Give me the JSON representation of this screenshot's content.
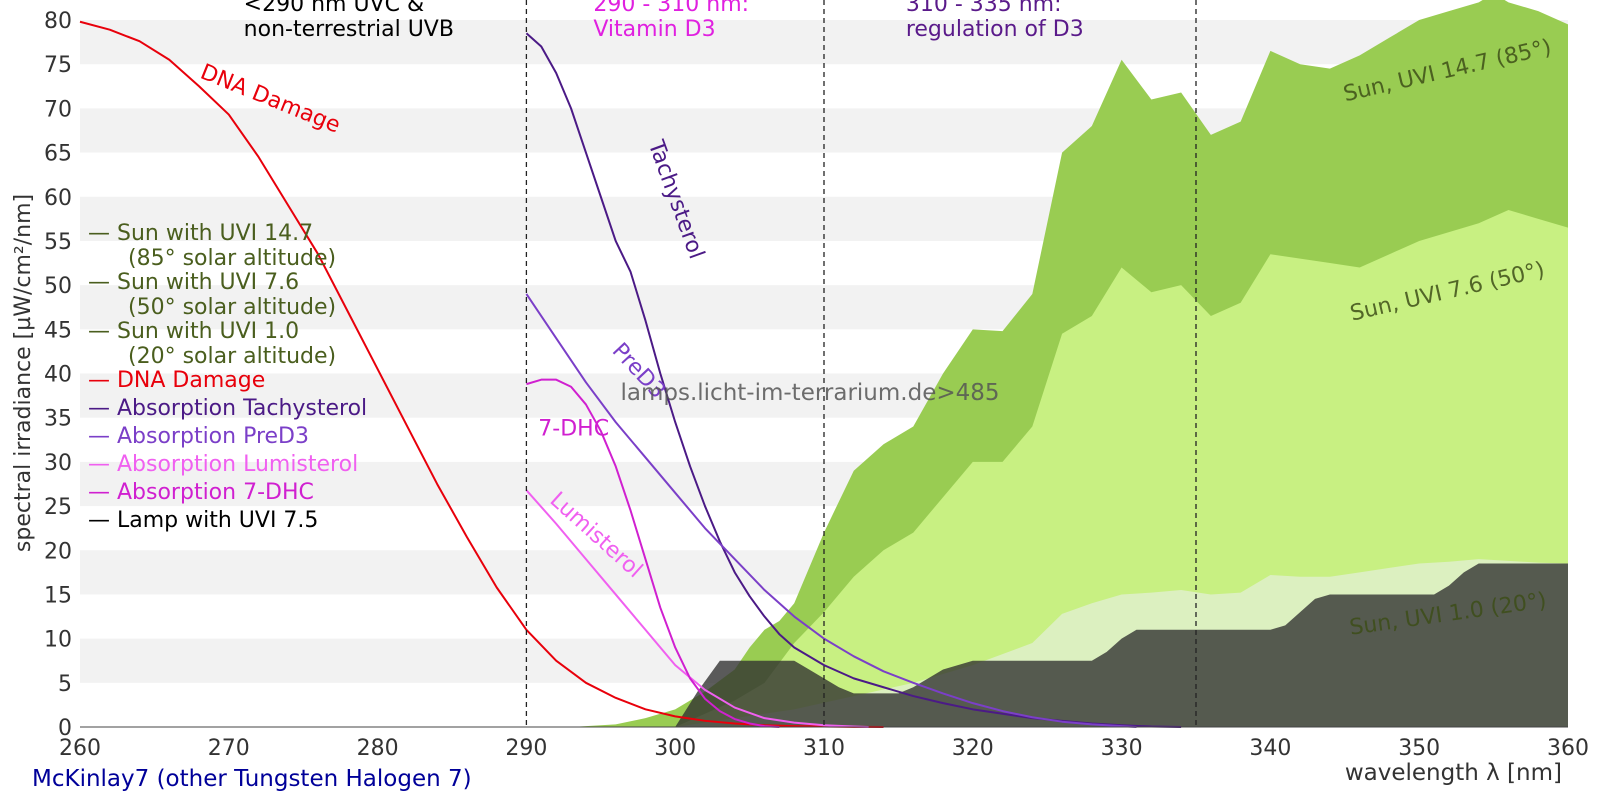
{
  "chart_data": {
    "type": "area",
    "xlabel": "wavelength λ [nm]",
    "ylabel": "spectral irradiance [µW/cm²/nm]",
    "xlim": [
      260,
      360
    ],
    "ylim": [
      0,
      80
    ],
    "x_ticks": [
      260,
      270,
      280,
      290,
      300,
      310,
      320,
      330,
      340,
      350,
      360
    ],
    "y_ticks": [
      0,
      5,
      10,
      15,
      20,
      25,
      30,
      35,
      40,
      45,
      50,
      55,
      60,
      65,
      70,
      75,
      80
    ],
    "grid": "horizontal bands",
    "vlines": [
      290,
      310,
      335
    ],
    "region_labels": [
      {
        "lines": [
          "<290 nm UVC &",
          "non-terrestrial UVB"
        ],
        "x": 271,
        "y": 81,
        "color": "#000000"
      },
      {
        "lines": [
          "290 - 310 nm:",
          "Vitamin D3"
        ],
        "x": 294.5,
        "y": 81,
        "color": "#e020e0"
      },
      {
        "lines": [
          "310 - 335 nm:",
          "regulation of D3"
        ],
        "x": 315.5,
        "y": 81,
        "color": "#5a1a8a"
      }
    ],
    "watermark": "lamps.licht-im-terrarium.de>485",
    "footer": "McKinlay7 (other Tungsten Halogen 7)",
    "legend": {
      "position": "left",
      "entries": [
        {
          "lines": [
            "— Sun with UVI 14.7",
            "(85° solar altitude)"
          ],
          "color": "#4a5e1e"
        },
        {
          "lines": [
            "— Sun with UVI 7.6",
            "(50° solar altitude)"
          ],
          "color": "#4a5e1e"
        },
        {
          "lines": [
            "— Sun with UVI 1.0",
            "(20° solar altitude)"
          ],
          "color": "#4a5e1e"
        },
        {
          "lines": [
            "— DNA Damage"
          ],
          "color": "#e8000b"
        },
        {
          "lines": [
            "— Absorption Tachysterol"
          ],
          "color": "#4b1a86"
        },
        {
          "lines": [
            "— Absorption PreD3"
          ],
          "color": "#7b3fc8"
        },
        {
          "lines": [
            "— Absorption Lumisterol"
          ],
          "color": "#f060f0"
        },
        {
          "lines": [
            "— Absorption 7-DHC"
          ],
          "color": "#d020d0"
        },
        {
          "lines": [
            "— Lamp with UVI 7.5"
          ],
          "color": "#000000"
        }
      ]
    },
    "areas": [
      {
        "name": "Sun, UVI 14.7 (85°)",
        "color": "#99cc52",
        "x": [
          293,
          296,
          298,
          300,
          302,
          304,
          305,
          306,
          307,
          308,
          310,
          312,
          314,
          316,
          318,
          320,
          322,
          324,
          326,
          328,
          330,
          332,
          334,
          336,
          338,
          340,
          342,
          344,
          346,
          348,
          350,
          352,
          354,
          355,
          356,
          358,
          360
        ],
        "y": [
          0,
          0.3,
          1,
          2,
          4,
          6.5,
          9,
          11,
          12,
          14,
          22,
          29,
          32,
          34,
          40,
          45,
          44.8,
          49,
          65,
          68,
          75.5,
          71,
          71.8,
          67,
          68.5,
          76.5,
          75,
          74.5,
          76,
          78,
          80,
          81,
          82,
          83,
          82,
          81,
          79.5
        ],
        "label": "Sun, UVI 14.7 (85°)",
        "label_x": 352,
        "label_y": 73.5,
        "label_angle": -13
      },
      {
        "name": "Sun, UVI 7.6 (50°)",
        "color": "#c8f082",
        "x": [
          300,
          302,
          304,
          306,
          308,
          310,
          312,
          314,
          316,
          318,
          320,
          322,
          324,
          326,
          328,
          330,
          332,
          334,
          336,
          338,
          340,
          342,
          344,
          346,
          348,
          350,
          352,
          354,
          356,
          358,
          360
        ],
        "y": [
          0,
          1.5,
          3,
          5,
          9.5,
          13,
          17,
          20,
          22,
          26,
          30,
          30,
          34,
          44.5,
          46.5,
          52,
          49.2,
          50,
          46.5,
          48,
          53.5,
          53,
          52.5,
          52,
          53.5,
          55,
          56,
          57,
          58.5,
          57.5,
          56.5
        ],
        "label": "Sun, UVI 7.6 (50°)",
        "label_x": 352,
        "label_y": 48.5,
        "label_angle": -13
      },
      {
        "name": "Sun, UVI 1.0 (20°)",
        "color": "#dcf0c0",
        "x": [
          300,
          304,
          308,
          312,
          316,
          320,
          324,
          326,
          328,
          330,
          332,
          334,
          336,
          338,
          340,
          342,
          344,
          346,
          348,
          350,
          352,
          354,
          356,
          358,
          360
        ],
        "y": [
          0,
          1,
          2,
          3.5,
          5,
          7,
          9.5,
          12.8,
          14,
          15,
          15.2,
          15.5,
          15,
          15.2,
          17.2,
          17,
          17,
          17.5,
          18,
          18.5,
          18.7,
          19,
          18.8,
          18.6,
          18.5
        ],
        "label": "Sun, UVI 1.0 (20°)",
        "label_x": 352,
        "label_y": 12,
        "label_angle": -8
      },
      {
        "name": "Lamp with UVI 7.5",
        "color": "#303030",
        "x": [
          300,
          301.5,
          303,
          304,
          305,
          306,
          307,
          308,
          309,
          310,
          311,
          312,
          313,
          314,
          315,
          316,
          317,
          318,
          319,
          320,
          321,
          322,
          323,
          324,
          325,
          326,
          327,
          328,
          329,
          330,
          331,
          332,
          333,
          334,
          335,
          336,
          337,
          338,
          339,
          340,
          341,
          342,
          343,
          344,
          345,
          346,
          347,
          348,
          349,
          350,
          351,
          352,
          353,
          354,
          355,
          356,
          357,
          358,
          359,
          360
        ],
        "y": [
          0,
          4,
          7.5,
          7.5,
          7.5,
          7.5,
          7.5,
          7.5,
          6.5,
          5.5,
          4.5,
          3.8,
          3.8,
          3.8,
          3.8,
          4.5,
          5.5,
          6.5,
          7,
          7.5,
          7.5,
          7.5,
          7.5,
          7.5,
          7.5,
          7.5,
          7.5,
          7.5,
          8.5,
          10,
          11,
          11,
          11,
          11,
          11,
          11,
          11,
          11,
          11,
          11,
          11.5,
          13,
          14.5,
          15,
          15,
          15,
          15,
          15,
          15,
          15,
          15,
          16,
          17.5,
          18.5,
          18.5,
          18.5,
          18.5,
          18.5,
          18.5,
          18.5
        ]
      }
    ],
    "lines": [
      {
        "name": "DNA Damage",
        "color": "#e8000b",
        "x": [
          260,
          262,
          264,
          266,
          268,
          270,
          272,
          274,
          276,
          278,
          280,
          282,
          284,
          286,
          288,
          290,
          292,
          294,
          296,
          298,
          300,
          302,
          304,
          306,
          308,
          310,
          312,
          314
        ],
        "y": [
          79.8,
          78.9,
          77.6,
          75.5,
          72.5,
          69.3,
          64.5,
          59,
          53.5,
          47,
          40.5,
          34,
          27.5,
          21.5,
          15.8,
          11,
          7.5,
          5,
          3.3,
          2,
          1.2,
          0.7,
          0.4,
          0.2,
          0.1,
          0.05,
          0.02,
          0
        ],
        "label": "DNA Damage",
        "label_x": 268,
        "label_y": 73.5,
        "label_angle": 22
      },
      {
        "name": "Tachysterol",
        "color": "#4b1a86",
        "x": [
          290,
          291,
          292,
          293,
          294,
          295,
          296,
          297,
          298,
          299,
          300,
          301,
          302,
          303,
          304,
          305,
          306,
          307,
          308,
          310,
          312,
          314,
          316,
          318,
          320,
          322,
          324,
          326,
          328,
          330,
          332,
          334
        ],
        "y": [
          78.5,
          77,
          74,
          70,
          65,
          60,
          55,
          51.5,
          46,
          40,
          34.5,
          29.5,
          25,
          21,
          17.5,
          14.8,
          12.5,
          10.5,
          9,
          7,
          5.5,
          4.5,
          3.5,
          2.7,
          2,
          1.5,
          1,
          0.7,
          0.4,
          0.2,
          0.05,
          0
        ],
        "label": "Tachysterol",
        "label_x": 298.2,
        "label_y": 66,
        "label_angle": 70
      },
      {
        "name": "PreD3",
        "color": "#7b3fc8",
        "x": [
          290,
          292,
          294,
          296,
          298,
          300,
          302,
          304,
          306,
          308,
          310,
          312,
          314,
          316,
          318,
          320,
          322,
          324,
          326,
          328,
          330,
          331
        ],
        "y": [
          49,
          44,
          39,
          34.5,
          30.5,
          26.5,
          22.5,
          19,
          15.5,
          12.5,
          10,
          8,
          6.3,
          5,
          3.8,
          2.7,
          1.8,
          1.1,
          0.6,
          0.3,
          0.1,
          0
        ],
        "label": "PreD3",
        "label_x": 295.7,
        "label_y": 42.5,
        "label_angle": 47
      },
      {
        "name": "Lumisterol",
        "color": "#f060f0",
        "x": [
          290,
          292,
          294,
          296,
          298,
          300,
          302,
          304,
          306,
          308,
          310,
          312,
          313
        ],
        "y": [
          26.8,
          23,
          19,
          15,
          11,
          7,
          4.2,
          2.2,
          1,
          0.5,
          0.2,
          0.05,
          0
        ],
        "label": "Lumisterol",
        "label_x": 291.5,
        "label_y": 25.5,
        "label_angle": 42
      },
      {
        "name": "7-DHC",
        "color": "#d020d0",
        "x": [
          290,
          291,
          292,
          293,
          294,
          295,
          296,
          297,
          298,
          299,
          300,
          301,
          302,
          303,
          304,
          305,
          306,
          307
        ],
        "y": [
          38.8,
          39.3,
          39.3,
          38.5,
          36.5,
          33.5,
          29.5,
          24.5,
          19,
          13.5,
          9,
          5.5,
          3.2,
          1.8,
          0.9,
          0.4,
          0.1,
          0
        ],
        "label": "7-DHC",
        "label_x": 290.8,
        "label_y": 33,
        "label_angle": 0
      }
    ]
  }
}
